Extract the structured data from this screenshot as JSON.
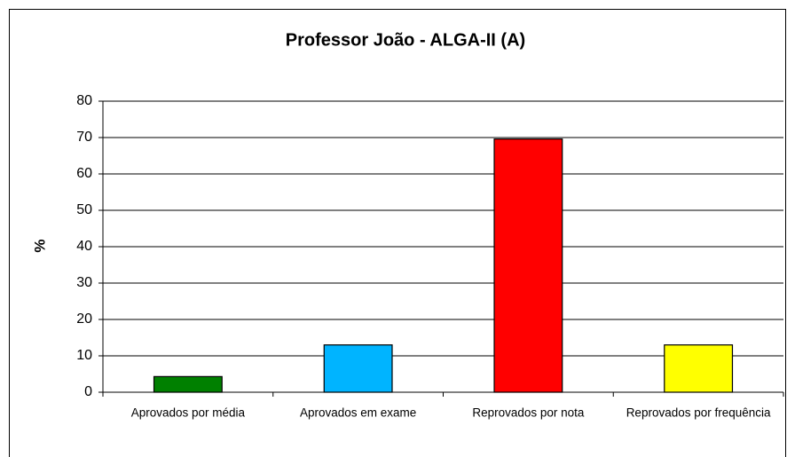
{
  "chart_data": {
    "type": "bar",
    "title": "Professor João - ALGA-II (A)",
    "y_label": "%",
    "categories": [
      "Aprovados por média",
      "Aprovados em exame",
      "Reprovados por nota",
      "Reprovados por frequência"
    ],
    "values": [
      4.3,
      13.0,
      69.6,
      13.0
    ],
    "colors": [
      "#008000",
      "#00b4ff",
      "#ff0000",
      "#ffff00"
    ],
    "ylim": [
      0,
      80
    ],
    "yticks": [
      0,
      10,
      20,
      30,
      40,
      50,
      60,
      70,
      80
    ],
    "grid": true
  }
}
